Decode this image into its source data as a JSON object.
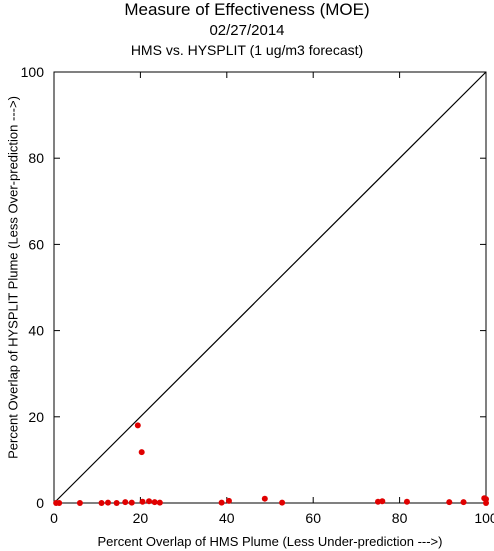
{
  "chart_data": {
    "type": "scatter",
    "title": "Measure of Effectiveness (MOE)",
    "date": "02/27/2014",
    "subtitle": "HMS vs. HYSPLIT  (1 ug/m3 forecast)",
    "xlabel": "Percent Overlap of HMS Plume (Less Under-prediction --->)",
    "ylabel": "Percent Overlap of HYSPLIT Plume (Less Over-prediction --->)",
    "xlim": [
      0,
      100
    ],
    "ylim": [
      0,
      100
    ],
    "xticks": [
      "0",
      "20",
      "40",
      "60",
      "80",
      "100"
    ],
    "yticks": [
      "0",
      "20",
      "40",
      "60",
      "80",
      "100"
    ],
    "reference_line": "y = x",
    "point_color": "#e00000",
    "points": [
      {
        "x": 0.5,
        "y": 0
      },
      {
        "x": 1.2,
        "y": 0
      },
      {
        "x": 6,
        "y": 0
      },
      {
        "x": 11,
        "y": 0
      },
      {
        "x": 12.5,
        "y": 0.1
      },
      {
        "x": 14.5,
        "y": 0
      },
      {
        "x": 16.5,
        "y": 0.2
      },
      {
        "x": 18,
        "y": 0.1
      },
      {
        "x": 19.4,
        "y": 18
      },
      {
        "x": 20.3,
        "y": 11.8
      },
      {
        "x": 20.5,
        "y": 0.3
      },
      {
        "x": 22,
        "y": 0.4
      },
      {
        "x": 23.3,
        "y": 0.2
      },
      {
        "x": 24.5,
        "y": 0.1
      },
      {
        "x": 38.8,
        "y": 0.1
      },
      {
        "x": 40.5,
        "y": 0.5
      },
      {
        "x": 48.8,
        "y": 1.0
      },
      {
        "x": 52.8,
        "y": 0.1
      },
      {
        "x": 75,
        "y": 0.3
      },
      {
        "x": 76,
        "y": 0.4
      },
      {
        "x": 81.7,
        "y": 0.3
      },
      {
        "x": 91.5,
        "y": 0.2
      },
      {
        "x": 94.8,
        "y": 0.2
      },
      {
        "x": 99.6,
        "y": 1.1
      },
      {
        "x": 100,
        "y": 0.9
      },
      {
        "x": 100,
        "y": 0
      }
    ]
  }
}
